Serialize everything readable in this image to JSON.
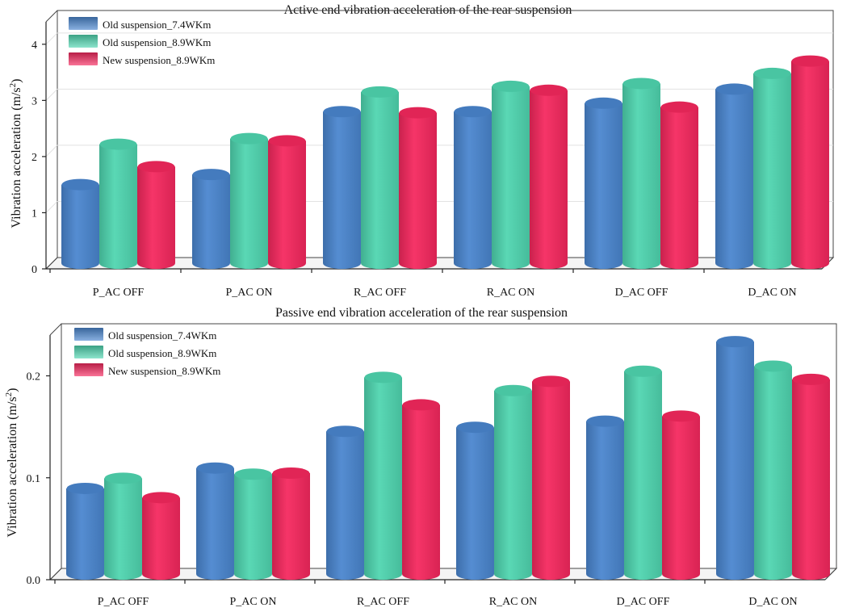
{
  "colors": {
    "old74": "#4a86cf",
    "old89": "#4fd6b0",
    "new89": "#f5285e"
  },
  "chart_data": [
    {
      "type": "bar",
      "title": "Active end vibration acceleration of the rear suspension",
      "ylabel": "Vibration acceleration (m/s²)",
      "ylabel_main": "Vibration acceleration (m/s",
      "ylabel_sup": "2",
      "ylabel_end": ")",
      "categories": [
        "P_AC OFF",
        "P_AC ON",
        "R_AC OFF",
        "R_AC ON",
        "D_AC OFF",
        "D_AC ON"
      ],
      "ylim": [
        0,
        4.4
      ],
      "yticks": [
        "0",
        "1",
        "2",
        "3",
        "4"
      ],
      "ytick_values": [
        0,
        1,
        2,
        3,
        4
      ],
      "legend_position": "top-left",
      "grid": true,
      "series": [
        {
          "name": "Old suspension_7.4WKm",
          "values": [
            1.4,
            1.58,
            2.7,
            2.7,
            2.85,
            3.1
          ]
        },
        {
          "name": "Old suspension_8.9WKm",
          "values": [
            2.12,
            2.22,
            3.05,
            3.15,
            3.2,
            3.38
          ]
        },
        {
          "name": "New suspension_8.9WKm",
          "values": [
            1.72,
            2.18,
            2.68,
            3.08,
            2.78,
            3.6
          ]
        }
      ]
    },
    {
      "type": "bar",
      "title": "Passive end vibration acceleration of the rear suspension",
      "ylabel": "Vibration acceleration (m/s²)",
      "ylabel_main": "Vibration acceleration (m/s",
      "ylabel_sup": "2",
      "ylabel_end": ")",
      "categories": [
        "P_AC OFF",
        "P_AC ON",
        "R_AC OFF",
        "R_AC ON",
        "D_AC OFF",
        "D_AC ON"
      ],
      "ylim": [
        0,
        0.24
      ],
      "yticks": [
        "0.0",
        "0.1",
        "0.2"
      ],
      "ytick_values": [
        0,
        0.1,
        0.2
      ],
      "legend_position": "top-left",
      "grid": false,
      "series": [
        {
          "name": "Old suspension_7.4WKm",
          "values": [
            0.084,
            0.104,
            0.14,
            0.144,
            0.15,
            0.228
          ]
        },
        {
          "name": "Old suspension_8.9WKm",
          "values": [
            0.094,
            0.098,
            0.193,
            0.18,
            0.199,
            0.204
          ]
        },
        {
          "name": "New suspension_8.9WKm",
          "values": [
            0.075,
            0.099,
            0.166,
            0.189,
            0.155,
            0.191
          ]
        }
      ]
    }
  ]
}
